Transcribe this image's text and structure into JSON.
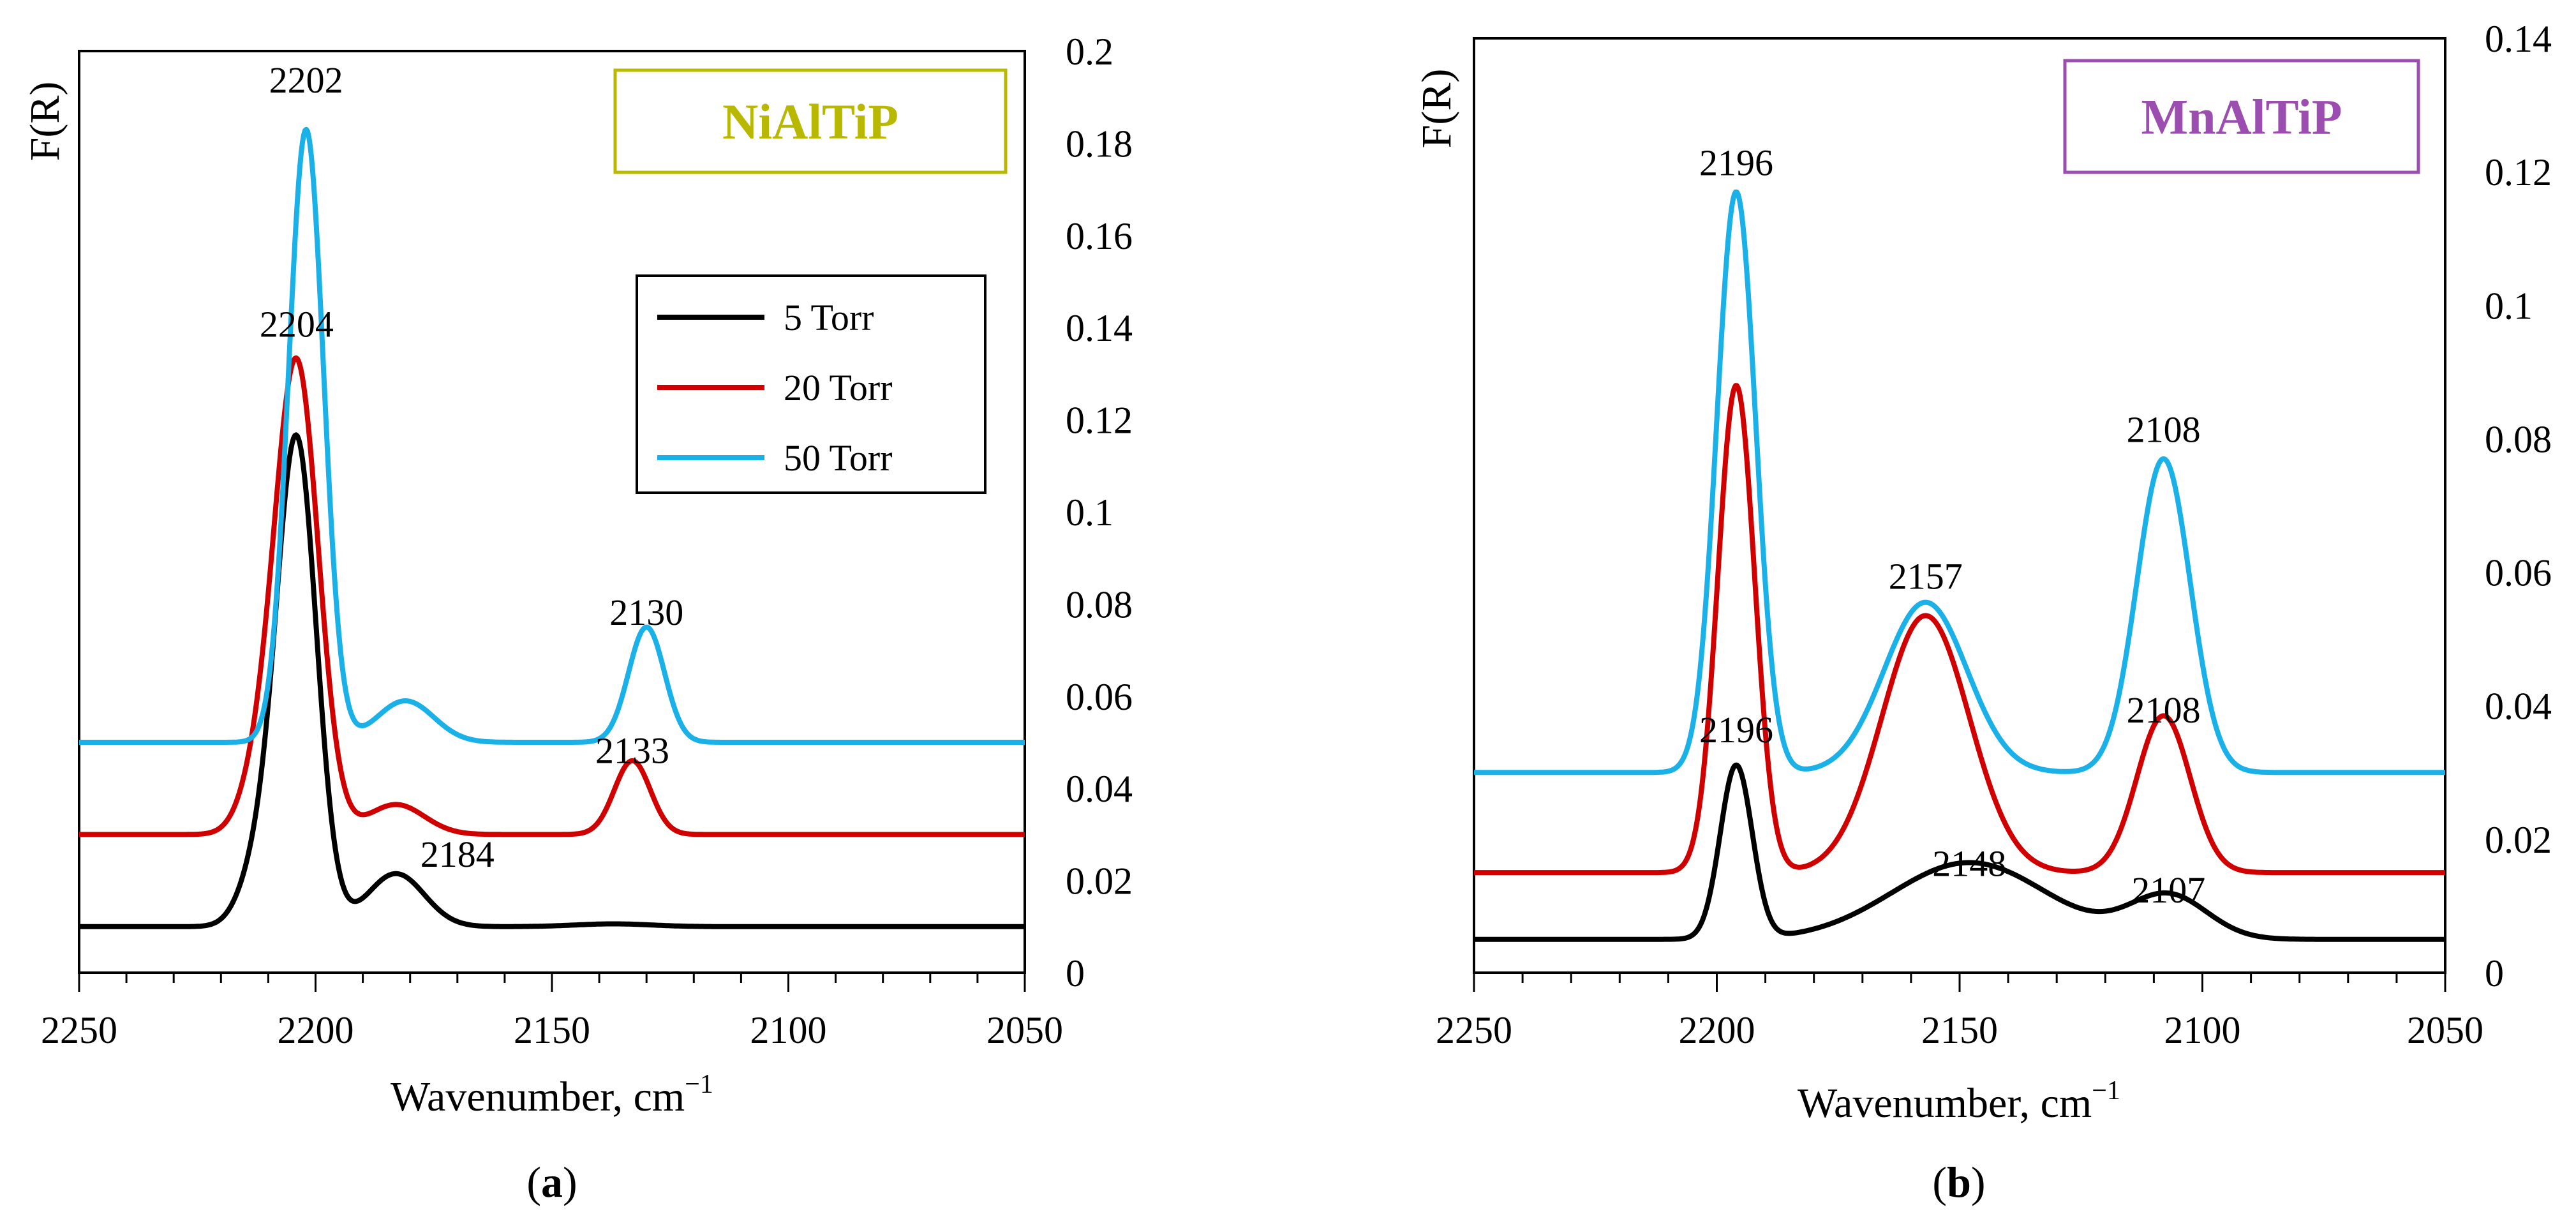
{
  "figure_captions": [
    "(a)",
    "(b)"
  ],
  "legend": {
    "entries": [
      {
        "label": "5 Torr",
        "color": "#000000"
      },
      {
        "label": "20 Torr",
        "color": "#d00000"
      },
      {
        "label": "50 Torr",
        "color": "#1ab0e8"
      }
    ]
  },
  "chart_data": [
    {
      "type": "line",
      "panel": "a",
      "caption_letter": "a",
      "sample": "NiAlTiP",
      "sample_color": "#b8b800",
      "xlabel_base": "Wavenumber, cm",
      "xlabel_sup": "−1",
      "ylabel": "F(R)",
      "xlim": [
        2250,
        2050
      ],
      "ylim": [
        0,
        0.2
      ],
      "x_ticks": [
        2250,
        2200,
        2150,
        2100,
        2050
      ],
      "x_tick_labels": [
        "2250",
        "2200",
        "2150",
        "2100",
        "2050"
      ],
      "y_ticks": [
        0,
        0.02,
        0.04,
        0.06,
        0.08,
        0.1,
        0.12,
        0.14,
        0.16,
        0.18,
        0.2
      ],
      "y_tick_labels": [
        "0",
        "0.02",
        "0.04",
        "0.06",
        "0.08",
        "0.1",
        "0.12",
        "0.14",
        "0.16",
        "0.18",
        "0.2"
      ],
      "series": [
        {
          "name": "5 Torr",
          "color": "#000000",
          "baseline": 0.01,
          "peaks": [
            {
              "center": 2204,
              "height": 0.105,
              "width": 4.2
            },
            {
              "center": 2212,
              "height": 0.012,
              "width": 4
            },
            {
              "center": 2183,
              "height": 0.0115,
              "width": 6
            },
            {
              "center": 2137,
              "height": 0.0006,
              "width": 8
            }
          ]
        },
        {
          "name": "20 Torr",
          "color": "#d00000",
          "baseline": 0.03,
          "peaks": [
            {
              "center": 2204,
              "height": 0.102,
              "width": 4.6
            },
            {
              "center": 2212,
              "height": 0.01,
              "width": 4
            },
            {
              "center": 2183,
              "height": 0.0065,
              "width": 6
            },
            {
              "center": 2133,
              "height": 0.016,
              "width": 3.8
            }
          ]
        },
        {
          "name": "50 Torr",
          "color": "#1ab0e8",
          "baseline": 0.05,
          "peaks": [
            {
              "center": 2202,
              "height": 0.133,
              "width": 3.7
            },
            {
              "center": 2181,
              "height": 0.009,
              "width": 6
            },
            {
              "center": 2130,
              "height": 0.025,
              "width": 3.8
            }
          ]
        }
      ],
      "annotations": [
        {
          "text": "2202",
          "x": 2202,
          "y": 0.191
        },
        {
          "text": "2204",
          "x": 2204,
          "y": 0.138
        },
        {
          "text": "2130",
          "x": 2130,
          "y": 0.0755
        },
        {
          "text": "2133",
          "x": 2133,
          "y": 0.0455
        },
        {
          "text": "2184",
          "x": 2170,
          "y": 0.023
        }
      ]
    },
    {
      "type": "line",
      "panel": "b",
      "caption_letter": "b",
      "sample": "MnAlTiP",
      "sample_color": "#9b4db0",
      "xlabel_base": "Wavenumber, cm",
      "xlabel_sup": "−1",
      "ylabel": "F(R)",
      "xlim": [
        2250,
        2050
      ],
      "ylim": [
        0,
        0.14
      ],
      "x_ticks": [
        2250,
        2200,
        2150,
        2100,
        2050
      ],
      "x_tick_labels": [
        "2250",
        "2200",
        "2150",
        "2100",
        "2050"
      ],
      "y_ticks": [
        0,
        0.02,
        0.04,
        0.06,
        0.08,
        0.1,
        0.12,
        0.14
      ],
      "y_tick_labels": [
        "0",
        "0.02",
        "0.04",
        "0.06",
        "0.08",
        "0.1",
        "0.12",
        "0.14"
      ],
      "series": [
        {
          "name": "5 Torr",
          "color": "#000000",
          "baseline": 0.005,
          "peaks": [
            {
              "center": 2196,
              "height": 0.026,
              "width": 3.3
            },
            {
              "center": 2148,
              "height": 0.0115,
              "width": 16
            },
            {
              "center": 2107,
              "height": 0.0065,
              "width": 8
            }
          ]
        },
        {
          "name": "20 Torr",
          "color": "#d00000",
          "baseline": 0.015,
          "peaks": [
            {
              "center": 2196,
              "height": 0.073,
              "width": 3.8
            },
            {
              "center": 2157,
              "height": 0.0385,
              "width": 9
            },
            {
              "center": 2108,
              "height": 0.0235,
              "width": 5.5
            }
          ]
        },
        {
          "name": "50 Torr",
          "color": "#1ab0e8",
          "baseline": 0.03,
          "peaks": [
            {
              "center": 2196,
              "height": 0.087,
              "width": 4
            },
            {
              "center": 2157,
              "height": 0.0255,
              "width": 8.5
            },
            {
              "center": 2108,
              "height": 0.047,
              "width": 5.5
            }
          ]
        }
      ],
      "annotations": [
        {
          "text": "2196",
          "x": 2196,
          "y": 0.1195
        },
        {
          "text": "2108",
          "x": 2108,
          "y": 0.0795
        },
        {
          "text": "2157",
          "x": 2157,
          "y": 0.0575
        },
        {
          "text": "2196",
          "x": 2196,
          "y": 0.0345
        },
        {
          "text": "2108",
          "x": 2108,
          "y": 0.0375
        },
        {
          "text": "2148",
          "x": 2148,
          "y": 0.0145
        },
        {
          "text": "2107",
          "x": 2107,
          "y": 0.0105
        }
      ]
    }
  ]
}
